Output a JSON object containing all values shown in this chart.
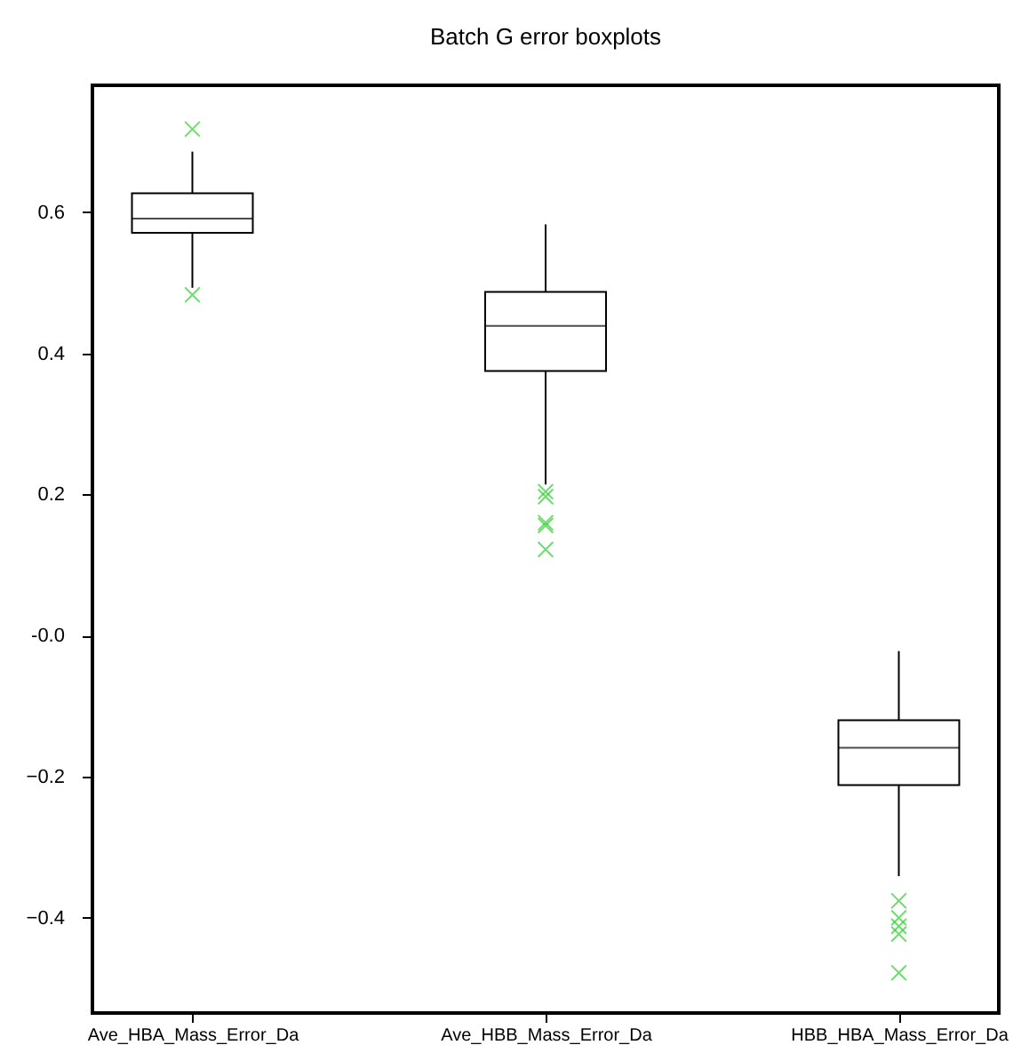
{
  "chart_data": {
    "type": "box",
    "title": "Batch G error boxplots",
    "categories": [
      "Ave_HBA_Mass_Error_Da",
      "Ave_HBB_Mass_Error_Da",
      "HBB_HBA_Mass_Error_Da"
    ],
    "series": [
      {
        "type": "box",
        "color": "#000000",
        "boxes": [
          {
            "low": 0.493,
            "q1": 0.571,
            "median": 0.591,
            "q3": 0.627,
            "high": 0.686
          },
          {
            "low": 0.214,
            "q1": 0.375,
            "median": 0.439,
            "q3": 0.487,
            "high": 0.583
          },
          {
            "low": -0.341,
            "q1": -0.212,
            "median": -0.159,
            "q3": -0.12,
            "high": -0.022
          }
        ]
      },
      {
        "type": "scatter",
        "color": "#33cc33",
        "marker": "cross",
        "x": [
          "Ave_HBA_Mass_Error_Da",
          "Ave_HBA_Mass_Error_Da",
          "Ave_HBB_Mass_Error_Da",
          "Ave_HBB_Mass_Error_Da",
          "Ave_HBB_Mass_Error_Da",
          "Ave_HBB_Mass_Error_Da",
          "Ave_HBB_Mass_Error_Da",
          "HBB_HBA_Mass_Error_Da",
          "HBB_HBA_Mass_Error_Da",
          "HBB_HBA_Mass_Error_Da",
          "HBB_HBA_Mass_Error_Da",
          "HBB_HBA_Mass_Error_Da"
        ],
        "values": [
          0.718,
          0.483,
          0.204,
          0.197,
          0.16,
          0.156,
          0.122,
          -0.376,
          -0.4,
          -0.412,
          -0.423,
          -0.478
        ]
      }
    ],
    "ylim": [
      -0.535,
      0.78
    ],
    "yticks": [
      -0.4,
      -0.2,
      {
        "value": 0,
        "label": "-0.0"
      },
      0.2,
      0.4,
      0.6
    ],
    "grid": false
  }
}
